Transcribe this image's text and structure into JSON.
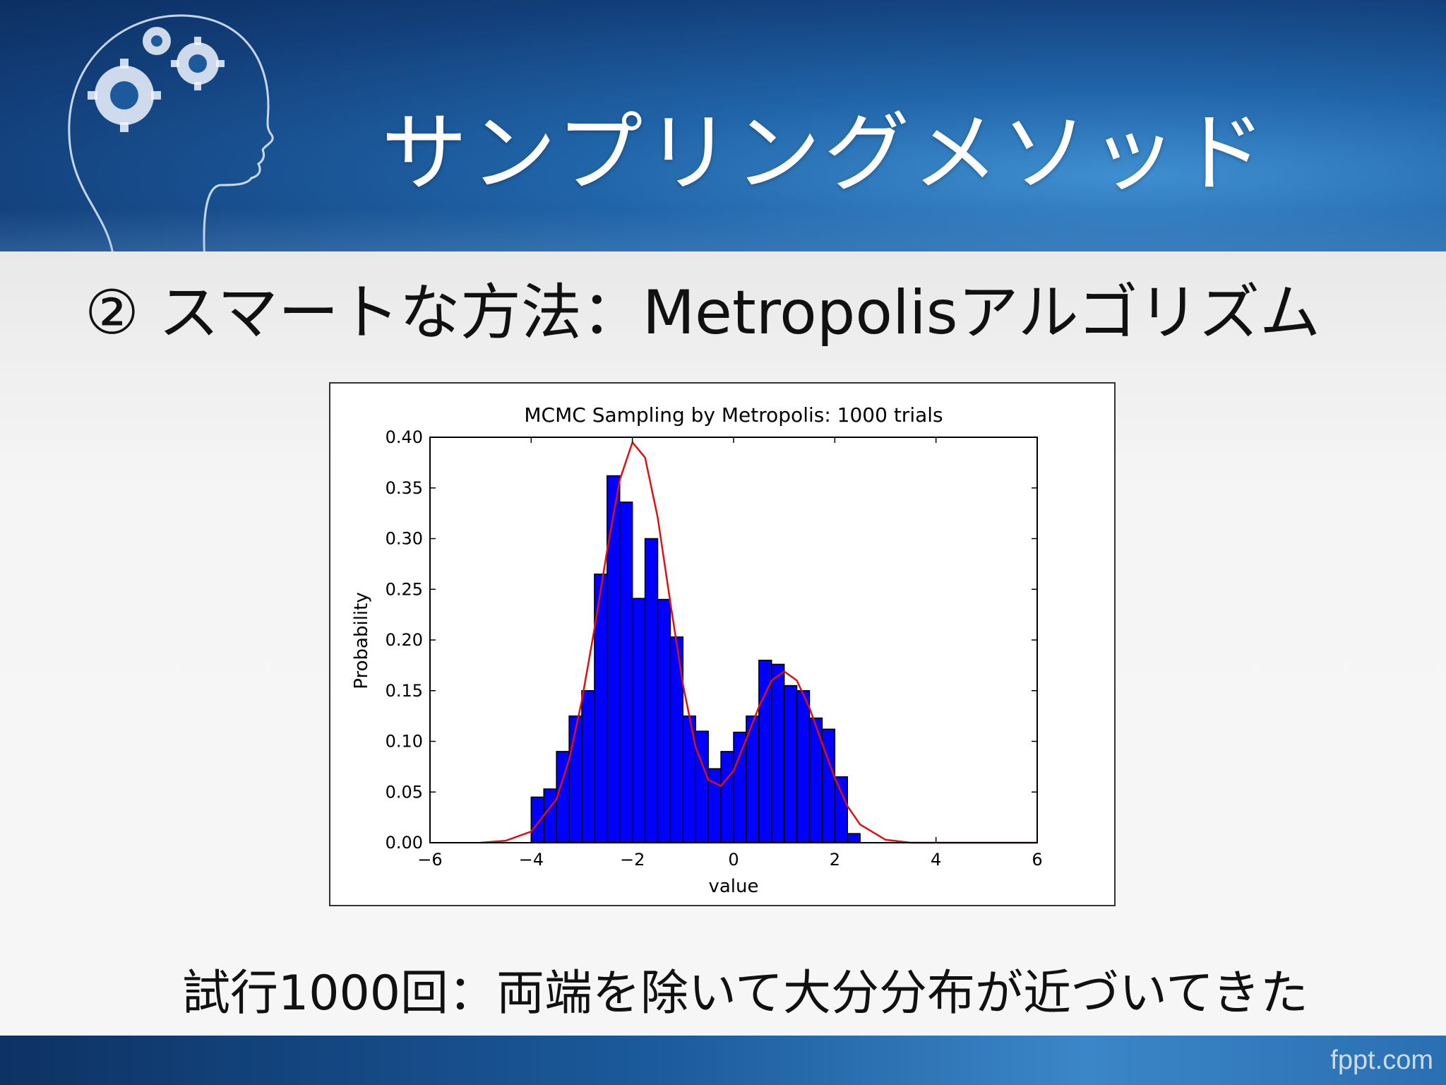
{
  "slide": {
    "title": "サンプリングメソッド",
    "subtitle": "② スマートな方法：Metropolisアルゴリズム",
    "caption": "試行1000回：両端を除いて大分分布が近づいてきた",
    "footer_logo": "fppt.com",
    "head_icon": "head-gears-icon"
  },
  "colors": {
    "bar_fill": "#0000ff",
    "curve": "#dd1111",
    "header_blue": "#1a5596"
  },
  "chart_data": {
    "type": "bar",
    "title": "MCMC Sampling by Metropolis: 1000 trials",
    "xlabel": "value",
    "ylabel": "Probability",
    "xlim": [
      -6,
      6
    ],
    "ylim": [
      0,
      0.4
    ],
    "xticks": [
      "−6",
      "−4",
      "−2",
      "0",
      "2",
      "4",
      "6"
    ],
    "yticks": [
      "0.00",
      "0.05",
      "0.10",
      "0.15",
      "0.20",
      "0.25",
      "0.30",
      "0.35",
      "0.40"
    ],
    "grid": false,
    "bin_edges": [
      -4.0,
      -3.75,
      -3.5,
      -3.25,
      -3.0,
      -2.75,
      -2.5,
      -2.25,
      -2.0,
      -1.75,
      -1.5,
      -1.25,
      -1.0,
      -0.75,
      -0.5,
      -0.25,
      0.0,
      0.25,
      0.5,
      0.75,
      1.0,
      1.25,
      1.5,
      1.75,
      2.0,
      2.25,
      2.5
    ],
    "values": [
      0.045,
      0.053,
      0.09,
      0.125,
      0.15,
      0.265,
      0.362,
      0.336,
      0.241,
      0.3,
      0.24,
      0.203,
      0.125,
      0.11,
      0.073,
      0.09,
      0.109,
      0.125,
      0.18,
      0.176,
      0.155,
      0.15,
      0.123,
      0.112,
      0.065,
      0.009
    ],
    "series": [
      {
        "type": "line",
        "x": [
          -5.0,
          -4.5,
          -4.0,
          -3.5,
          -3.25,
          -3.0,
          -2.75,
          -2.5,
          -2.25,
          -2.0,
          -1.75,
          -1.5,
          -1.25,
          -1.0,
          -0.75,
          -0.5,
          -0.25,
          0.0,
          0.25,
          0.5,
          0.75,
          1.0,
          1.25,
          1.5,
          1.75,
          2.0,
          2.25,
          2.5,
          3.0,
          3.5,
          4.0,
          5.0,
          6.0
        ],
        "y": [
          0.0,
          0.002,
          0.011,
          0.043,
          0.082,
          0.14,
          0.211,
          0.288,
          0.358,
          0.395,
          0.38,
          0.321,
          0.237,
          0.156,
          0.094,
          0.062,
          0.056,
          0.071,
          0.102,
          0.134,
          0.16,
          0.169,
          0.16,
          0.133,
          0.098,
          0.064,
          0.036,
          0.018,
          0.003,
          0.0,
          0.0,
          0.0,
          0.0
        ]
      }
    ]
  }
}
